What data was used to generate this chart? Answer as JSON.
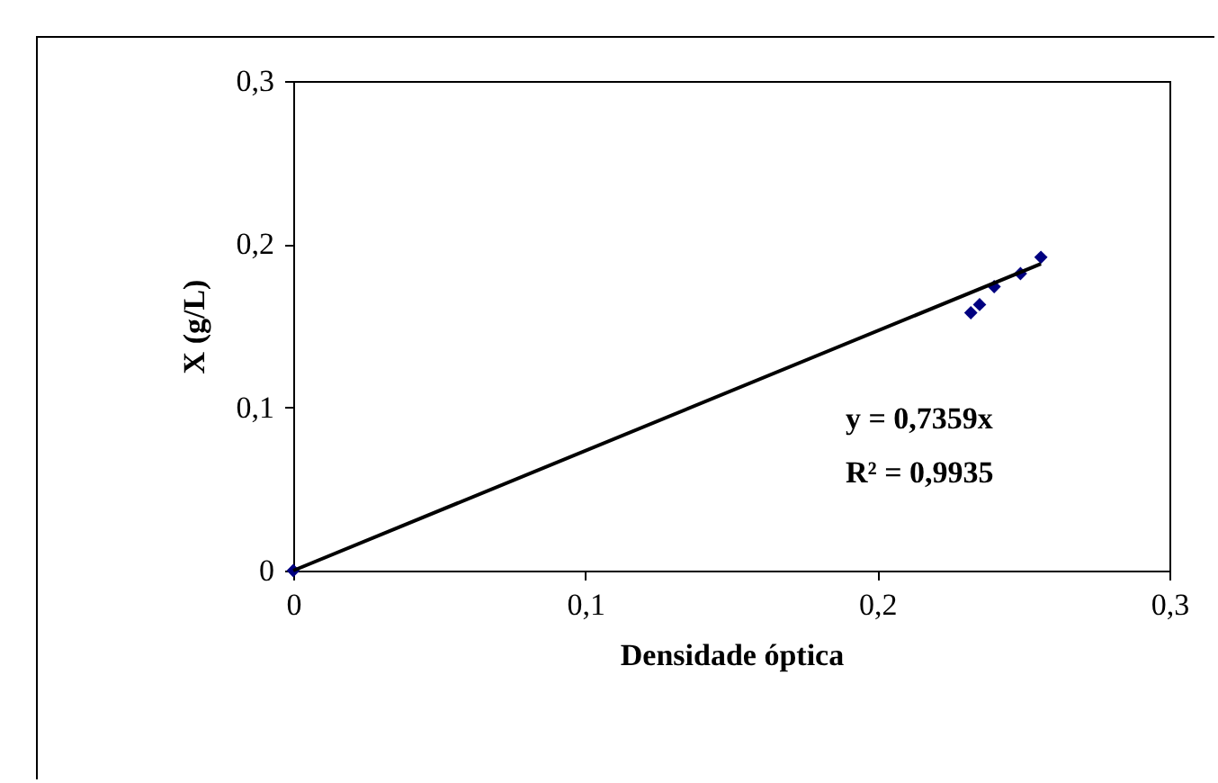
{
  "chart_data": {
    "type": "scatter",
    "xlabel": "Densidade óptica",
    "ylabel": "X (g/L)",
    "xlim": [
      0,
      0.3
    ],
    "ylim": [
      0,
      0.3
    ],
    "xticks": [
      {
        "value": 0,
        "label": "0"
      },
      {
        "value": 0.1,
        "label": "0,1"
      },
      {
        "value": 0.2,
        "label": "0,2"
      },
      {
        "value": 0.3,
        "label": "0,3"
      }
    ],
    "yticks": [
      {
        "value": 0,
        "label": "0"
      },
      {
        "value": 0.1,
        "label": "0,1"
      },
      {
        "value": 0.2,
        "label": "0,2"
      },
      {
        "value": 0.3,
        "label": "0,3"
      }
    ],
    "grid": false,
    "legend": false,
    "marker": "diamond",
    "series": [
      {
        "color": "#000080",
        "x": [
          0,
          0.232,
          0.235,
          0.24,
          0.249,
          0.256
        ],
        "values": [
          0,
          0.158,
          0.163,
          0.174,
          0.182,
          0.192
        ]
      },
      {
        "type": "line",
        "color": "#000000",
        "marker": "none",
        "x": [
          0,
          0.256
        ],
        "values": [
          0,
          0.188
        ]
      }
    ],
    "annotations": [
      "y = 0,7359x",
      "R² = 0,9935"
    ]
  }
}
